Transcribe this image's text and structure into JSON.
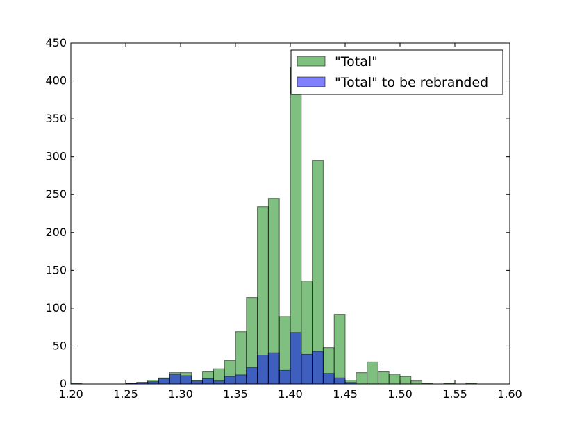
{
  "chart_data": {
    "type": "bar",
    "subtype": "overlaid-histogram",
    "title": "",
    "xlabel": "",
    "ylabel": "",
    "xlim": [
      1.2,
      1.6
    ],
    "ylim": [
      0,
      450
    ],
    "xticks": [
      "1.20",
      "1.25",
      "1.30",
      "1.35",
      "1.40",
      "1.45",
      "1.50",
      "1.55",
      "1.60"
    ],
    "yticks": [
      "0",
      "50",
      "100",
      "150",
      "200",
      "250",
      "300",
      "350",
      "400",
      "450"
    ],
    "grid": false,
    "legend_position": "top-right",
    "bin_edges_start": 1.2,
    "bin_width": 0.01,
    "series": [
      {
        "name": "\"Total\"",
        "color": "#008000",
        "alpha": 0.5,
        "values": [
          1,
          0,
          0,
          0,
          0,
          1,
          2,
          5,
          8,
          15,
          15,
          5,
          16,
          20,
          31,
          69,
          114,
          234,
          245,
          89,
          418,
          136,
          295,
          48,
          92,
          5,
          15,
          29,
          16,
          13,
          10,
          4,
          1,
          0,
          1,
          0,
          1,
          0,
          0,
          0
        ]
      },
      {
        "name": "\"Total\" to be rebranded",
        "color": "#0000ff",
        "alpha": 0.5,
        "values": [
          0,
          0,
          0,
          0,
          0,
          1,
          2,
          3,
          7,
          13,
          11,
          4,
          7,
          4,
          10,
          12,
          22,
          38,
          41,
          18,
          68,
          39,
          43,
          14,
          8,
          2,
          0,
          0,
          0,
          0,
          0,
          0,
          0,
          0,
          0,
          0,
          0,
          0,
          0,
          0
        ]
      }
    ]
  }
}
